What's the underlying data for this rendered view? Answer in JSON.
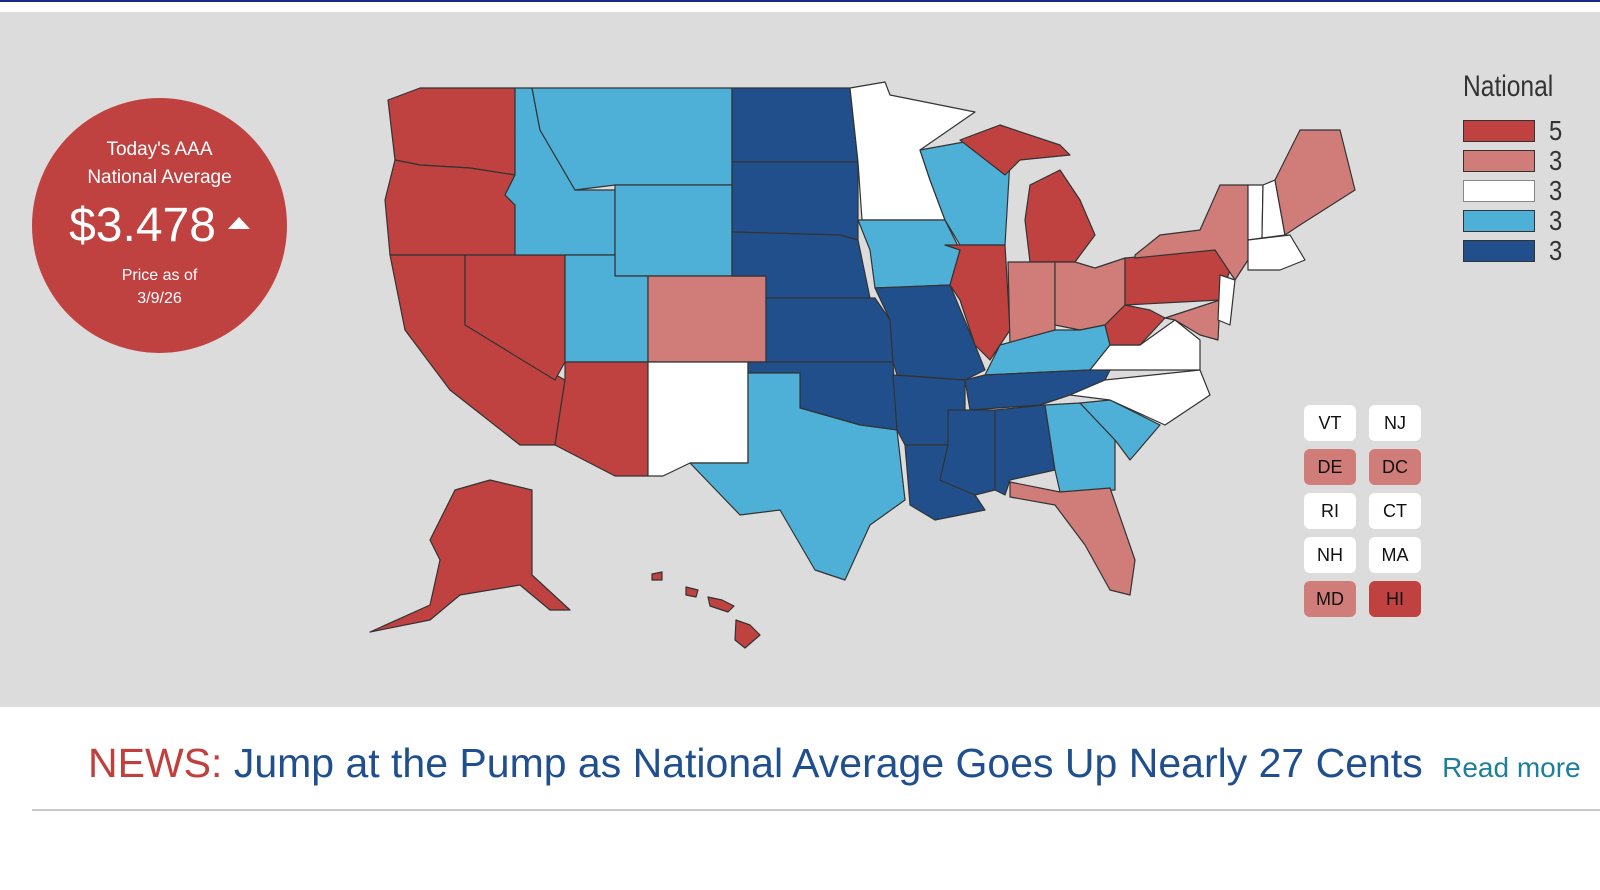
{
  "summary": {
    "title_line1": "Today's AAA",
    "title_line2": "National Average",
    "price": "$3.478",
    "trend": "up",
    "date_line1": "Price as of",
    "date_line2": "3/9/26"
  },
  "legend": {
    "title": "National",
    "tiers": [
      {
        "id": "t1",
        "label": "5",
        "color": "#bf4240"
      },
      {
        "id": "t2",
        "label": "3",
        "color": "#d07c79"
      },
      {
        "id": "t3",
        "label": "3",
        "color": "#ffffff"
      },
      {
        "id": "t4",
        "label": "3",
        "color": "#4fb0d7"
      },
      {
        "id": "t5",
        "label": "3",
        "color": "#214f8b"
      }
    ]
  },
  "map": {
    "states": [
      {
        "code": "WA",
        "tier": "t1"
      },
      {
        "code": "OR",
        "tier": "t1"
      },
      {
        "code": "CA",
        "tier": "t1"
      },
      {
        "code": "NV",
        "tier": "t1"
      },
      {
        "code": "ID",
        "tier": "t4"
      },
      {
        "code": "MT",
        "tier": "t4"
      },
      {
        "code": "WY",
        "tier": "t4"
      },
      {
        "code": "UT",
        "tier": "t4"
      },
      {
        "code": "CO",
        "tier": "t2"
      },
      {
        "code": "AZ",
        "tier": "t1"
      },
      {
        "code": "NM",
        "tier": "t3"
      },
      {
        "code": "ND",
        "tier": "t5"
      },
      {
        "code": "SD",
        "tier": "t5"
      },
      {
        "code": "NE",
        "tier": "t5"
      },
      {
        "code": "KS",
        "tier": "t5"
      },
      {
        "code": "OK",
        "tier": "t5"
      },
      {
        "code": "TX",
        "tier": "t4"
      },
      {
        "code": "MN",
        "tier": "t3"
      },
      {
        "code": "IA",
        "tier": "t4"
      },
      {
        "code": "MO",
        "tier": "t5"
      },
      {
        "code": "AR",
        "tier": "t5"
      },
      {
        "code": "LA",
        "tier": "t5"
      },
      {
        "code": "WI",
        "tier": "t4"
      },
      {
        "code": "IL",
        "tier": "t1"
      },
      {
        "code": "MI",
        "tier": "t1"
      },
      {
        "code": "IN",
        "tier": "t2"
      },
      {
        "code": "OH",
        "tier": "t2"
      },
      {
        "code": "KY",
        "tier": "t4"
      },
      {
        "code": "TN",
        "tier": "t5"
      },
      {
        "code": "MS",
        "tier": "t5"
      },
      {
        "code": "AL",
        "tier": "t5"
      },
      {
        "code": "GA",
        "tier": "t4"
      },
      {
        "code": "FL",
        "tier": "t2"
      },
      {
        "code": "SC",
        "tier": "t4"
      },
      {
        "code": "NC",
        "tier": "t3"
      },
      {
        "code": "VA",
        "tier": "t3"
      },
      {
        "code": "WV",
        "tier": "t1"
      },
      {
        "code": "PA",
        "tier": "t1"
      },
      {
        "code": "NY",
        "tier": "t2"
      },
      {
        "code": "MD",
        "tier": "t2"
      },
      {
        "code": "NJ",
        "tier": "t3"
      },
      {
        "code": "VT",
        "tier": "t3"
      },
      {
        "code": "NH",
        "tier": "t3"
      },
      {
        "code": "ME",
        "tier": "t2"
      },
      {
        "code": "MA",
        "tier": "t3"
      },
      {
        "code": "AK",
        "tier": "t1"
      },
      {
        "code": "HI",
        "tier": "t1"
      }
    ],
    "small_states": [
      {
        "code": "VT",
        "tier": "t3"
      },
      {
        "code": "NJ",
        "tier": "t3"
      },
      {
        "code": "DE",
        "tier": "t2"
      },
      {
        "code": "DC",
        "tier": "t2"
      },
      {
        "code": "RI",
        "tier": "t3"
      },
      {
        "code": "CT",
        "tier": "t3"
      },
      {
        "code": "NH",
        "tier": "t3"
      },
      {
        "code": "MA",
        "tier": "t3"
      },
      {
        "code": "MD",
        "tier": "t2"
      },
      {
        "code": "HI",
        "tier": "t1"
      }
    ]
  },
  "news": {
    "label": "NEWS:",
    "headline": "Jump at the Pump as National Average Goes Up Nearly 27 Cents",
    "link": "Read more"
  }
}
